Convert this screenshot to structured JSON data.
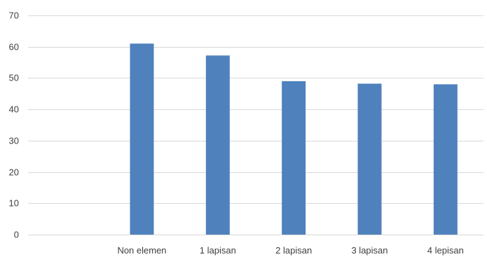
{
  "chart_data": {
    "type": "bar",
    "title": "",
    "xlabel": "",
    "ylabel": "",
    "categories": [
      "",
      "Non elemen",
      "1 lapisan",
      "2 lapisan",
      "3 lapisan",
      "4 lepisan"
    ],
    "values": [
      null,
      61,
      57.2,
      49,
      48.2,
      48
    ],
    "ylim": [
      0,
      70
    ],
    "yticks": [
      0,
      10,
      20,
      30,
      40,
      50,
      60,
      70
    ],
    "grid": true,
    "legend": "none",
    "bar_color": "#4f81bd"
  }
}
